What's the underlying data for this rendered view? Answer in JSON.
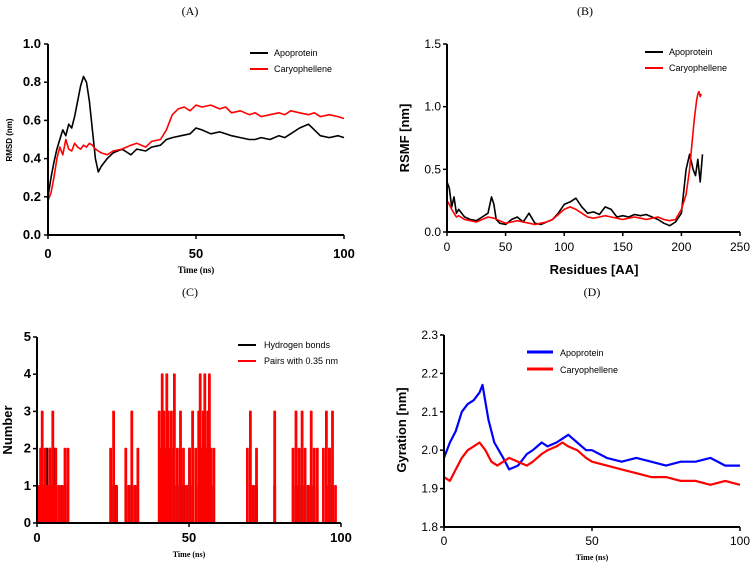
{
  "chart_data": [
    {
      "id": "A",
      "type": "line",
      "panel_label": "(A)",
      "xlabel": "Time (ns)",
      "ylabel": "RMSD (nm)",
      "xlim": [
        0,
        100
      ],
      "ylim": [
        0,
        1.0
      ],
      "xticks": [
        "0",
        "50",
        "100"
      ],
      "yticks": [
        "0.0",
        "0.2",
        "0.4",
        "0.6",
        "0.8",
        "1.0"
      ],
      "legend": "top-right",
      "series": [
        {
          "name": "Apoprotein",
          "color": "#000000",
          "x": [
            0,
            1,
            2,
            3,
            4,
            5,
            6,
            7,
            8,
            9,
            10,
            11,
            12,
            13,
            14,
            15,
            16,
            17,
            18,
            20,
            22,
            25,
            28,
            30,
            33,
            35,
            38,
            40,
            42,
            45,
            48,
            50,
            52,
            55,
            58,
            60,
            62,
            65,
            68,
            70,
            72,
            75,
            78,
            80,
            82,
            85,
            88,
            90,
            92,
            95,
            98,
            100
          ],
          "values": [
            0.2,
            0.3,
            0.38,
            0.45,
            0.5,
            0.55,
            0.52,
            0.58,
            0.56,
            0.62,
            0.7,
            0.78,
            0.83,
            0.8,
            0.7,
            0.55,
            0.4,
            0.33,
            0.36,
            0.4,
            0.43,
            0.45,
            0.42,
            0.45,
            0.44,
            0.46,
            0.47,
            0.5,
            0.51,
            0.52,
            0.53,
            0.56,
            0.55,
            0.53,
            0.54,
            0.53,
            0.52,
            0.51,
            0.5,
            0.5,
            0.51,
            0.5,
            0.52,
            0.51,
            0.53,
            0.56,
            0.58,
            0.55,
            0.52,
            0.51,
            0.52,
            0.51
          ]
        },
        {
          "name": "Caryophellene",
          "color": "#ff0000",
          "x": [
            0,
            1,
            2,
            3,
            4,
            5,
            6,
            7,
            8,
            9,
            10,
            11,
            12,
            13,
            14,
            15,
            16,
            17,
            18,
            20,
            22,
            25,
            28,
            30,
            33,
            35,
            38,
            40,
            42,
            44,
            46,
            48,
            50,
            52,
            55,
            58,
            60,
            62,
            65,
            68,
            70,
            72,
            75,
            78,
            80,
            82,
            85,
            88,
            90,
            92,
            95,
            98,
            100
          ],
          "values": [
            0.18,
            0.22,
            0.3,
            0.4,
            0.46,
            0.42,
            0.5,
            0.45,
            0.44,
            0.48,
            0.46,
            0.45,
            0.47,
            0.46,
            0.48,
            0.47,
            0.45,
            0.44,
            0.43,
            0.42,
            0.44,
            0.45,
            0.47,
            0.48,
            0.46,
            0.49,
            0.5,
            0.55,
            0.63,
            0.66,
            0.67,
            0.65,
            0.68,
            0.67,
            0.68,
            0.66,
            0.67,
            0.64,
            0.65,
            0.63,
            0.64,
            0.62,
            0.63,
            0.64,
            0.63,
            0.65,
            0.64,
            0.63,
            0.64,
            0.62,
            0.63,
            0.62,
            0.61
          ]
        }
      ]
    },
    {
      "id": "B",
      "type": "line",
      "panel_label": "(B)",
      "xlabel": "Residues [AA]",
      "ylabel": "RSMF [nm]",
      "xlim": [
        0,
        250
      ],
      "ylim": [
        0,
        1.5
      ],
      "xticks": [
        "0",
        "50",
        "100",
        "150",
        "200",
        "250"
      ],
      "yticks": [
        "0.0",
        "0.5",
        "1.0",
        "1.5"
      ],
      "legend": "top-right",
      "series": [
        {
          "name": "Apoprotein",
          "color": "#000000",
          "x": [
            0,
            2,
            4,
            6,
            8,
            10,
            15,
            20,
            25,
            30,
            35,
            38,
            40,
            42,
            45,
            50,
            55,
            60,
            65,
            70,
            75,
            80,
            85,
            90,
            95,
            100,
            105,
            110,
            115,
            120,
            125,
            130,
            135,
            140,
            145,
            150,
            155,
            160,
            165,
            170,
            175,
            180,
            185,
            190,
            195,
            200,
            204,
            207,
            210,
            212,
            214,
            216,
            218
          ],
          "values": [
            0.4,
            0.35,
            0.2,
            0.28,
            0.15,
            0.18,
            0.12,
            0.1,
            0.09,
            0.12,
            0.15,
            0.28,
            0.22,
            0.1,
            0.07,
            0.06,
            0.1,
            0.12,
            0.08,
            0.15,
            0.07,
            0.06,
            0.08,
            0.1,
            0.15,
            0.22,
            0.24,
            0.27,
            0.2,
            0.15,
            0.16,
            0.14,
            0.2,
            0.18,
            0.12,
            0.13,
            0.12,
            0.14,
            0.13,
            0.14,
            0.12,
            0.1,
            0.07,
            0.05,
            0.08,
            0.15,
            0.5,
            0.62,
            0.5,
            0.45,
            0.58,
            0.4,
            0.62
          ]
        },
        {
          "name": "Caryophellene",
          "color": "#ff0000",
          "x": [
            0,
            2,
            4,
            6,
            8,
            10,
            15,
            20,
            25,
            30,
            35,
            40,
            45,
            50,
            55,
            60,
            65,
            70,
            75,
            80,
            85,
            90,
            95,
            100,
            105,
            110,
            115,
            120,
            125,
            130,
            135,
            140,
            145,
            150,
            155,
            160,
            165,
            170,
            175,
            180,
            185,
            190,
            195,
            200,
            204,
            207,
            209,
            211,
            213,
            214,
            215,
            216,
            217
          ],
          "values": [
            0.25,
            0.22,
            0.18,
            0.15,
            0.12,
            0.13,
            0.1,
            0.09,
            0.08,
            0.1,
            0.12,
            0.11,
            0.09,
            0.07,
            0.08,
            0.09,
            0.08,
            0.07,
            0.06,
            0.07,
            0.08,
            0.1,
            0.14,
            0.18,
            0.2,
            0.18,
            0.15,
            0.12,
            0.11,
            0.12,
            0.13,
            0.12,
            0.11,
            0.1,
            0.11,
            0.12,
            0.11,
            0.1,
            0.11,
            0.12,
            0.1,
            0.09,
            0.1,
            0.18,
            0.3,
            0.5,
            0.7,
            0.9,
            1.05,
            1.1,
            1.12,
            1.08,
            1.1
          ]
        }
      ]
    },
    {
      "id": "C",
      "type": "line",
      "panel_label": "(C)",
      "xlabel": "Time (ns)",
      "ylabel": "Number",
      "xlim": [
        0,
        100
      ],
      "ylim": [
        0,
        5
      ],
      "xticks": [
        "0",
        "50",
        "100"
      ],
      "yticks": [
        "0",
        "1",
        "2",
        "3",
        "4",
        "5"
      ],
      "legend": "top-right",
      "series": [
        {
          "name": "Hydrogen bonds",
          "color": "#000000",
          "x": [
            1,
            1.5,
            2,
            2.5,
            3,
            3.5,
            4,
            4.5,
            5,
            5.5,
            6,
            7,
            8,
            9,
            25,
            25.5,
            30,
            31,
            32,
            41,
            41.5,
            42,
            42.5,
            43,
            43.5,
            44,
            45,
            46,
            47,
            48,
            49,
            50,
            51,
            53,
            53.5,
            54,
            54.5,
            55,
            55.5,
            56,
            56.5,
            57,
            70,
            71,
            72,
            78,
            85,
            86,
            87,
            88,
            89,
            90,
            91,
            95,
            96,
            97
          ],
          "values": [
            1,
            2,
            1,
            1,
            2,
            1,
            2,
            1,
            1,
            2,
            1,
            1,
            1,
            1,
            1,
            1,
            1,
            1,
            1,
            1,
            2,
            1,
            2,
            1,
            1,
            2,
            1,
            1,
            2,
            1,
            1,
            2,
            1,
            1,
            2,
            1,
            2,
            2,
            1,
            2,
            1,
            1,
            1,
            1,
            1,
            1,
            1,
            1,
            2,
            1,
            1,
            1,
            1,
            1,
            2,
            1
          ]
        },
        {
          "name": "Pairs with 0.35 nm",
          "color": "#ff0000",
          "x": [
            0.5,
            1,
            1.5,
            2,
            2.5,
            3,
            3.5,
            4,
            4.5,
            5,
            5.5,
            6,
            7,
            8,
            9,
            10,
            24,
            25,
            26,
            29,
            30,
            31,
            32,
            33,
            40,
            40.5,
            41,
            41.5,
            42,
            42.5,
            43,
            43.5,
            44,
            45,
            46,
            47,
            48,
            49,
            50,
            51,
            52,
            53,
            53.5,
            54,
            54.5,
            55,
            55.5,
            56,
            56.5,
            57,
            58,
            69,
            70,
            71,
            72,
            78,
            84,
            85,
            86,
            87,
            88,
            89,
            90,
            91,
            92,
            94,
            95,
            96,
            97,
            98
          ],
          "values": [
            1,
            2,
            3,
            1,
            2,
            1,
            1,
            2,
            1,
            3,
            1,
            2,
            1,
            1,
            2,
            2,
            2,
            3,
            1,
            2,
            1,
            3,
            1,
            2,
            3,
            2,
            4,
            3,
            2,
            4,
            3,
            2,
            3,
            4,
            2,
            3,
            2,
            1,
            2,
            3,
            2,
            3,
            4,
            2,
            3,
            4,
            2,
            3,
            4,
            2,
            2,
            2,
            3,
            1,
            2,
            3,
            2,
            3,
            2,
            3,
            2,
            1,
            3,
            2,
            2,
            2,
            3,
            2,
            3,
            1
          ]
        }
      ]
    },
    {
      "id": "D",
      "type": "line",
      "panel_label": "(D)",
      "xlabel": "Time (ns)",
      "ylabel": "Gyration [nm]",
      "xlim": [
        0,
        100
      ],
      "ylim": [
        1.8,
        2.3
      ],
      "xticks": [
        "0",
        "50",
        "100"
      ],
      "yticks": [
        "1.8",
        "1.9",
        "2.0",
        "2.1",
        "2.2",
        "2.3"
      ],
      "legend": "top-right",
      "series": [
        {
          "name": "Apoprotein",
          "color": "#0000ff",
          "x": [
            0,
            2,
            4,
            6,
            8,
            10,
            12,
            13,
            15,
            17,
            20,
            22,
            25,
            28,
            30,
            33,
            35,
            38,
            40,
            42,
            45,
            48,
            50,
            55,
            60,
            65,
            70,
            75,
            80,
            85,
            90,
            95,
            100
          ],
          "values": [
            1.98,
            2.02,
            2.05,
            2.1,
            2.12,
            2.13,
            2.15,
            2.17,
            2.08,
            2.02,
            1.98,
            1.95,
            1.96,
            1.99,
            2.0,
            2.02,
            2.01,
            2.02,
            2.03,
            2.04,
            2.02,
            2.0,
            2.0,
            1.98,
            1.97,
            1.98,
            1.97,
            1.96,
            1.97,
            1.97,
            1.98,
            1.96,
            1.96
          ]
        },
        {
          "name": "Caryophellene",
          "color": "#ff0000",
          "x": [
            0,
            2,
            4,
            6,
            8,
            10,
            12,
            14,
            16,
            18,
            20,
            22,
            25,
            28,
            30,
            33,
            35,
            38,
            40,
            42,
            45,
            48,
            50,
            55,
            60,
            65,
            70,
            75,
            80,
            85,
            90,
            95,
            100
          ],
          "values": [
            1.93,
            1.92,
            1.95,
            1.98,
            2.0,
            2.01,
            2.02,
            2.0,
            1.97,
            1.96,
            1.97,
            1.98,
            1.97,
            1.96,
            1.97,
            1.99,
            2.0,
            2.01,
            2.02,
            2.01,
            2.0,
            1.98,
            1.97,
            1.96,
            1.95,
            1.94,
            1.93,
            1.93,
            1.92,
            1.92,
            1.91,
            1.92,
            1.91
          ]
        }
      ]
    }
  ]
}
